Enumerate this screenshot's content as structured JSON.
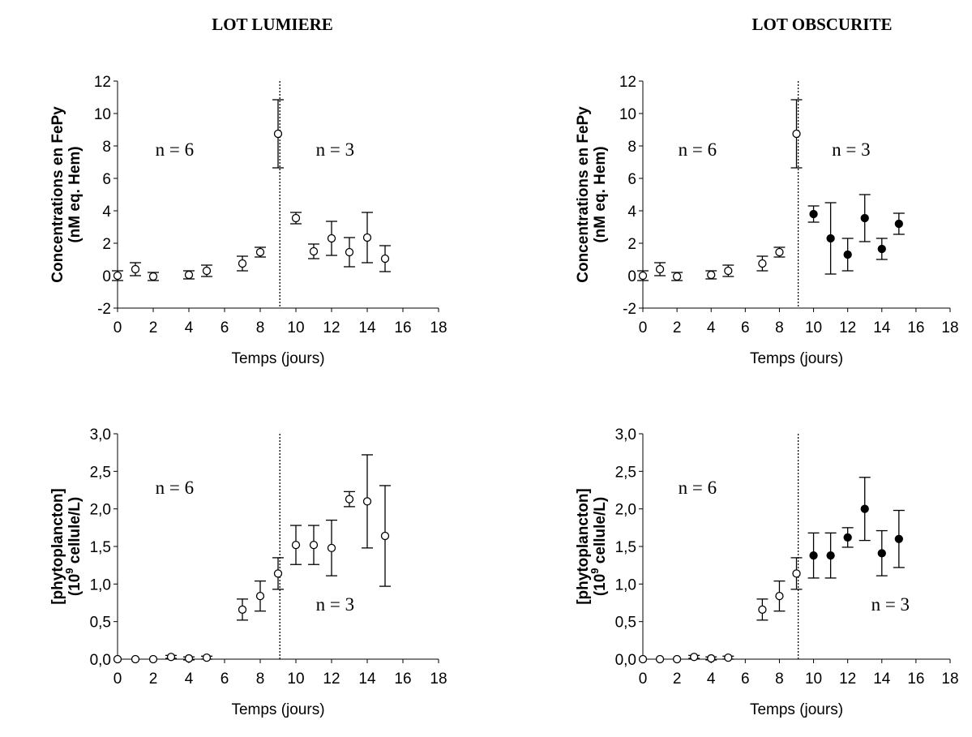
{
  "titles": [
    "LOT LUMIERE",
    "LOT OBSCURITE"
  ],
  "chart_data": [
    {
      "type": "scatter",
      "xlabel": "Temps (jours)",
      "ylabel": [
        "Concentrations en FePy",
        "(nM eq. Hem)"
      ],
      "xlim": [
        0,
        18
      ],
      "ylim": [
        -2,
        12
      ],
      "xticks": [
        "0",
        "2",
        "4",
        "6",
        "8",
        "10",
        "12",
        "14",
        "16",
        "18"
      ],
      "yticks": [
        "-2",
        "0",
        "2",
        "4",
        "6",
        "8",
        "10",
        "12"
      ],
      "vline": 9.1,
      "annotations": [
        {
          "text": "n = 6",
          "x": 3.2,
          "y": 7.4
        },
        {
          "text": "n = 3",
          "x": 12.2,
          "y": 7.4
        }
      ],
      "series": [
        {
          "fill": "open",
          "points": [
            {
              "x": 0,
              "y": 0.0,
              "err": 0.3
            },
            {
              "x": 1,
              "y": 0.4,
              "err": 0.4
            },
            {
              "x": 2,
              "y": -0.05,
              "err": 0.25
            },
            {
              "x": 4,
              "y": 0.05,
              "err": 0.25
            },
            {
              "x": 5,
              "y": 0.3,
              "err": 0.35
            },
            {
              "x": 7,
              "y": 0.75,
              "err": 0.45
            },
            {
              "x": 8,
              "y": 1.45,
              "err": 0.3
            },
            {
              "x": 9,
              "y": 8.75,
              "err": 2.1
            }
          ]
        },
        {
          "fill": "open",
          "points": [
            {
              "x": 10,
              "y": 3.55,
              "err": 0.35
            },
            {
              "x": 11,
              "y": 1.5,
              "err": 0.45
            },
            {
              "x": 12,
              "y": 2.3,
              "err": 1.05
            },
            {
              "x": 13,
              "y": 1.45,
              "err": 0.9
            },
            {
              "x": 14,
              "y": 2.35,
              "err": 1.55
            },
            {
              "x": 15,
              "y": 1.05,
              "err": 0.8
            }
          ]
        }
      ]
    },
    {
      "type": "scatter",
      "xlabel": "Temps (jours)",
      "ylabel": [
        "Concentrations en FePy",
        "(nM eq. Hem)"
      ],
      "xlim": [
        0,
        18
      ],
      "ylim": [
        -2,
        12
      ],
      "xticks": [
        "0",
        "2",
        "4",
        "6",
        "8",
        "10",
        "12",
        "14",
        "16",
        "18"
      ],
      "yticks": [
        "-2",
        "0",
        "2",
        "4",
        "6",
        "8",
        "10",
        "12"
      ],
      "vline": 9.1,
      "annotations": [
        {
          "text": "n = 6",
          "x": 3.2,
          "y": 7.4
        },
        {
          "text": "n = 3",
          "x": 12.2,
          "y": 7.4
        }
      ],
      "series": [
        {
          "fill": "open",
          "points": [
            {
              "x": 0,
              "y": 0.0,
              "err": 0.3
            },
            {
              "x": 1,
              "y": 0.4,
              "err": 0.4
            },
            {
              "x": 2,
              "y": -0.05,
              "err": 0.25
            },
            {
              "x": 4,
              "y": 0.05,
              "err": 0.25
            },
            {
              "x": 5,
              "y": 0.3,
              "err": 0.35
            },
            {
              "x": 7,
              "y": 0.75,
              "err": 0.45
            },
            {
              "x": 8,
              "y": 1.45,
              "err": 0.3
            },
            {
              "x": 9,
              "y": 8.75,
              "err": 2.1
            }
          ]
        },
        {
          "fill": "filled",
          "points": [
            {
              "x": 10,
              "y": 3.8,
              "err": 0.5
            },
            {
              "x": 11,
              "y": 2.3,
              "err": 2.2
            },
            {
              "x": 12,
              "y": 1.3,
              "err": 1.0
            },
            {
              "x": 13,
              "y": 3.55,
              "err": 1.45
            },
            {
              "x": 14,
              "y": 1.65,
              "err": 0.65
            },
            {
              "x": 15,
              "y": 3.2,
              "err": 0.65
            }
          ]
        }
      ]
    },
    {
      "type": "scatter",
      "xlabel": "Temps (jours)",
      "ylabel": [
        "[phytoplancton]",
        "(10",
        "9",
        " cellule/L)"
      ],
      "xlim": [
        0,
        18
      ],
      "ylim": [
        0,
        3
      ],
      "xticks": [
        "0",
        "2",
        "4",
        "6",
        "8",
        "10",
        "12",
        "14",
        "16",
        "18"
      ],
      "yticks": [
        "0,0",
        "0,5",
        "1,0",
        "1,5",
        "2,0",
        "2,5",
        "3,0"
      ],
      "vline": 9.1,
      "annotations": [
        {
          "text": "n = 6",
          "x": 3.2,
          "y": 2.2
        },
        {
          "text": "n = 3",
          "x": 12.2,
          "y": 0.65
        }
      ],
      "series": [
        {
          "fill": "open",
          "points": [
            {
              "x": 0,
              "y": 0.0,
              "err": 0
            },
            {
              "x": 1,
              "y": 0.0,
              "err": 0
            },
            {
              "x": 2,
              "y": 0.0,
              "err": 0
            },
            {
              "x": 3,
              "y": 0.03,
              "err": 0.02
            },
            {
              "x": 4,
              "y": 0.01,
              "err": 0.02
            },
            {
              "x": 5,
              "y": 0.02,
              "err": 0.02
            },
            {
              "x": 7,
              "y": 0.66,
              "err": 0.14
            },
            {
              "x": 8,
              "y": 0.84,
              "err": 0.2
            },
            {
              "x": 9,
              "y": 1.14,
              "err": 0.21
            },
            {
              "x": 10,
              "y": 1.52,
              "err": 0.26
            },
            {
              "x": 11,
              "y": 1.52,
              "err": 0.26
            },
            {
              "x": 12,
              "y": 1.48,
              "err": 0.37
            },
            {
              "x": 13,
              "y": 2.13,
              "err": 0.1
            },
            {
              "x": 14,
              "y": 2.1,
              "err": 0.62
            },
            {
              "x": 15,
              "y": 1.64,
              "err": 0.67
            }
          ]
        }
      ]
    },
    {
      "type": "scatter",
      "xlabel": "Temps (jours)",
      "ylabel": [
        "[phytoplancton]",
        "(10",
        "9",
        " cellule/L)"
      ],
      "xlim": [
        0,
        18
      ],
      "ylim": [
        0,
        3
      ],
      "xticks": [
        "0",
        "2",
        "4",
        "6",
        "8",
        "10",
        "12",
        "14",
        "16",
        "18"
      ],
      "yticks": [
        "0,0",
        "0,5",
        "1,0",
        "1,5",
        "2,0",
        "2,5",
        "3,0"
      ],
      "vline": 9.1,
      "annotations": [
        {
          "text": "n = 6",
          "x": 3.2,
          "y": 2.2
        },
        {
          "text": "n = 3",
          "x": 14.5,
          "y": 0.65
        }
      ],
      "series": [
        {
          "fill": "open",
          "points": [
            {
              "x": 0,
              "y": 0.0,
              "err": 0
            },
            {
              "x": 1,
              "y": 0.0,
              "err": 0
            },
            {
              "x": 2,
              "y": 0.0,
              "err": 0
            },
            {
              "x": 3,
              "y": 0.03,
              "err": 0.02
            },
            {
              "x": 4,
              "y": 0.01,
              "err": 0.02
            },
            {
              "x": 5,
              "y": 0.02,
              "err": 0.02
            },
            {
              "x": 7,
              "y": 0.66,
              "err": 0.14
            },
            {
              "x": 8,
              "y": 0.84,
              "err": 0.2
            },
            {
              "x": 9,
              "y": 1.14,
              "err": 0.21
            }
          ]
        },
        {
          "fill": "filled",
          "points": [
            {
              "x": 10,
              "y": 1.38,
              "err": 0.3
            },
            {
              "x": 11,
              "y": 1.38,
              "err": 0.3
            },
            {
              "x": 12,
              "y": 1.62,
              "err": 0.13
            },
            {
              "x": 13,
              "y": 2.0,
              "err": 0.42
            },
            {
              "x": 14,
              "y": 1.41,
              "err": 0.3
            },
            {
              "x": 15,
              "y": 1.6,
              "err": 0.38
            }
          ]
        }
      ]
    }
  ]
}
